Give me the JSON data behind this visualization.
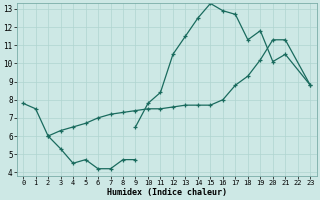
{
  "xlabel": "Humidex (Indice chaleur)",
  "bg_color": "#cde8e5",
  "line_color": "#1a6b5e",
  "grid_color": "#b0d5d0",
  "xlim": [
    -0.5,
    23.5
  ],
  "ylim": [
    3.8,
    13.3
  ],
  "xticks": [
    0,
    1,
    2,
    3,
    4,
    5,
    6,
    7,
    8,
    9,
    10,
    11,
    12,
    13,
    14,
    15,
    16,
    17,
    18,
    19,
    20,
    21,
    22,
    23
  ],
  "yticks": [
    4,
    5,
    6,
    7,
    8,
    9,
    10,
    11,
    12,
    13
  ],
  "line1_x": [
    0,
    1,
    2,
    3,
    4,
    5,
    6,
    7,
    8,
    9
  ],
  "line1_y": [
    7.8,
    7.5,
    6.0,
    5.3,
    4.5,
    4.7,
    4.2,
    4.2,
    4.7,
    4.7
  ],
  "line2_x": [
    9,
    10,
    11,
    12,
    13,
    14,
    15,
    16,
    17,
    18,
    19,
    20,
    21,
    23
  ],
  "line2_y": [
    6.5,
    7.8,
    8.4,
    10.5,
    11.5,
    12.5,
    13.3,
    12.9,
    12.7,
    11.3,
    11.8,
    10.1,
    10.5,
    8.8
  ],
  "line3_x": [
    2,
    3,
    4,
    5,
    6,
    7,
    8,
    9,
    10,
    11,
    12,
    13,
    14,
    15,
    16,
    17,
    18,
    19,
    20,
    21,
    23
  ],
  "line3_y": [
    6.0,
    6.3,
    6.5,
    6.7,
    7.0,
    7.2,
    7.3,
    7.4,
    7.5,
    7.5,
    7.6,
    7.7,
    7.7,
    7.7,
    8.0,
    8.8,
    9.3,
    10.2,
    11.3,
    11.3,
    8.8
  ]
}
